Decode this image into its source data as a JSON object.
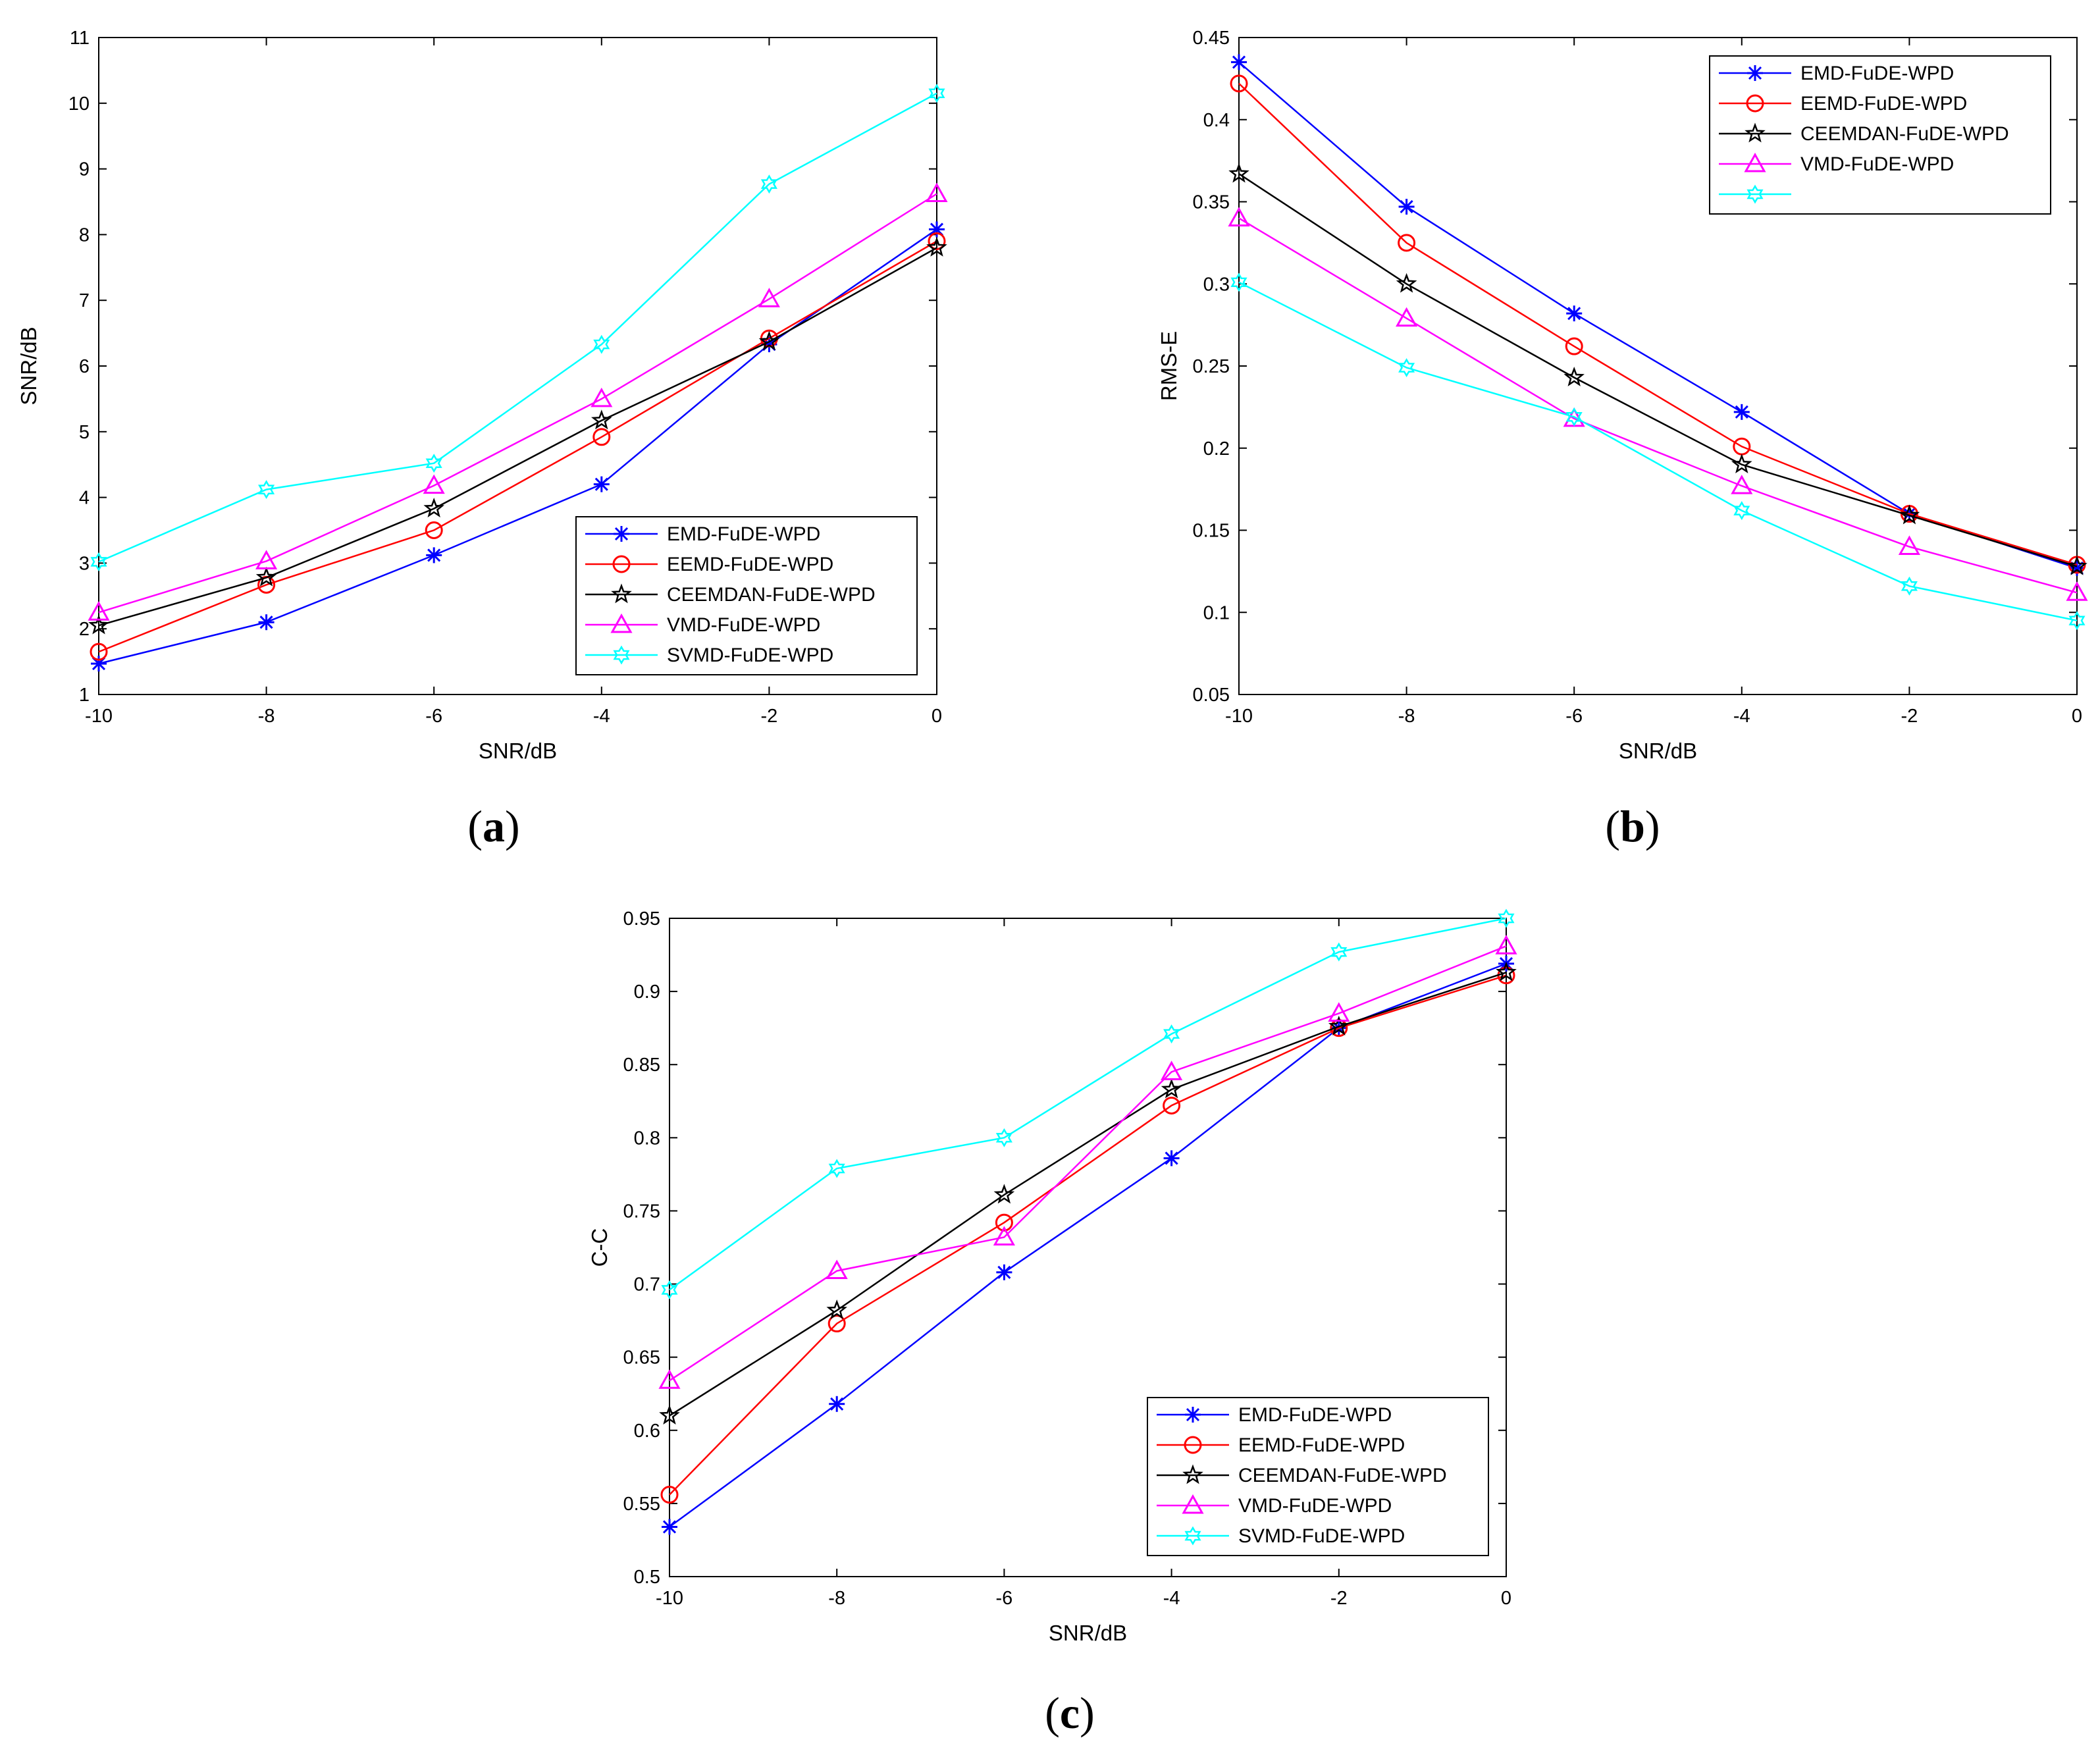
{
  "figure": {
    "panels": [
      "a",
      "b",
      "c"
    ]
  },
  "chart_data": [
    {
      "id": "a",
      "type": "line",
      "caption_letter": "a",
      "xlabel": "SNR/dB",
      "ylabel": "SNR/dB",
      "xlim": [
        -10,
        0
      ],
      "ylim": [
        1,
        11
      ],
      "xticks": [
        -10,
        -8,
        -6,
        -4,
        -2,
        0
      ],
      "xtick_labels": [
        "-10",
        "-8",
        "-6",
        "-4",
        "-2",
        "0"
      ],
      "yticks": [
        1,
        2,
        3,
        4,
        5,
        6,
        7,
        8,
        9,
        10,
        11
      ],
      "ytick_labels": [
        "1",
        "2",
        "3",
        "4",
        "5",
        "6",
        "7",
        "8",
        "9",
        "10",
        "11"
      ],
      "legend_position": "bottom-right",
      "x": [
        -10,
        -8,
        -6,
        -4,
        -2,
        0
      ],
      "series": [
        {
          "name": "EMD-FuDE-WPD",
          "color": "#0000ff",
          "marker": "asterisk",
          "values": [
            1.47,
            2.1,
            3.12,
            4.2,
            6.33,
            8.08
          ]
        },
        {
          "name": "EEMD-FuDE-WPD",
          "color": "#ff0000",
          "marker": "circle",
          "values": [
            1.65,
            2.67,
            3.5,
            4.92,
            6.42,
            7.9
          ]
        },
        {
          "name": "CEEMDAN-FuDE-WPD",
          "color": "#000000",
          "marker": "star",
          "values": [
            2.05,
            2.78,
            3.83,
            5.17,
            6.37,
            7.8
          ]
        },
        {
          "name": "VMD-FuDE-WPD",
          "color": "#ff00ff",
          "marker": "triangle",
          "values": [
            2.25,
            3.03,
            4.18,
            5.5,
            7.02,
            8.62
          ]
        },
        {
          "name": "SVMD-FuDE-WPD",
          "color": "#00ffff",
          "marker": "hexagram",
          "values": [
            3.02,
            4.12,
            4.52,
            6.33,
            8.77,
            10.15
          ]
        }
      ]
    },
    {
      "id": "b",
      "type": "line",
      "caption_letter": "b",
      "xlabel": "SNR/dB",
      "ylabel": "RMS-E",
      "xlim": [
        -10,
        0
      ],
      "ylim": [
        0.05,
        0.45
      ],
      "xticks": [
        -10,
        -8,
        -6,
        -4,
        -2,
        0
      ],
      "xtick_labels": [
        "-10",
        "-8",
        "-6",
        "-4",
        "-2",
        "0"
      ],
      "yticks": [
        0.05,
        0.1,
        0.15,
        0.2,
        0.25,
        0.3,
        0.35,
        0.4,
        0.45
      ],
      "ytick_labels": [
        "0.05",
        "0.1",
        "0.15",
        "0.2",
        "0.25",
        "0.3",
        "0.35",
        "0.4",
        "0.45"
      ],
      "legend_position": "top-right",
      "x": [
        -10,
        -8,
        -6,
        -4,
        -2,
        0
      ],
      "series": [
        {
          "name": "EMD-FuDE-WPD",
          "color": "#0000ff",
          "marker": "asterisk",
          "values": [
            0.435,
            0.347,
            0.282,
            0.222,
            0.16,
            0.127
          ]
        },
        {
          "name": "EEMD-FuDE-WPD",
          "color": "#ff0000",
          "marker": "circle",
          "values": [
            0.422,
            0.325,
            0.262,
            0.201,
            0.16,
            0.129
          ]
        },
        {
          "name": "CEEMDAN-FuDE-WPD",
          "color": "#000000",
          "marker": "star",
          "values": [
            0.367,
            0.3,
            0.243,
            0.19,
            0.159,
            0.128
          ]
        },
        {
          "name": "VMD-FuDE-WPD",
          "color": "#ff00ff",
          "marker": "triangle",
          "values": [
            0.34,
            0.279,
            0.218,
            0.177,
            0.14,
            0.112
          ]
        },
        {
          "name": "",
          "color": "#00ffff",
          "marker": "hexagram",
          "values": [
            0.301,
            0.249,
            0.219,
            0.162,
            0.116,
            0.095
          ]
        }
      ]
    },
    {
      "id": "c",
      "type": "line",
      "caption_letter": "c",
      "xlabel": "SNR/dB",
      "ylabel": "C-C",
      "xlim": [
        -10,
        0
      ],
      "ylim": [
        0.5,
        0.95
      ],
      "xticks": [
        -10,
        -8,
        -6,
        -4,
        -2,
        0
      ],
      "xtick_labels": [
        "-10",
        "-8",
        "-6",
        "-4",
        "-2",
        "0"
      ],
      "yticks": [
        0.5,
        0.55,
        0.6,
        0.65,
        0.7,
        0.75,
        0.8,
        0.85,
        0.9,
        0.95
      ],
      "ytick_labels": [
        "0.5",
        "0.55",
        "0.6",
        "0.65",
        "0.7",
        "0.75",
        "0.8",
        "0.85",
        "0.9",
        "0.95"
      ],
      "legend_position": "bottom-right",
      "x": [
        -10,
        -8,
        -6,
        -4,
        -2,
        0
      ],
      "series": [
        {
          "name": "EMD-FuDE-WPD",
          "color": "#0000ff",
          "marker": "asterisk",
          "values": [
            0.534,
            0.618,
            0.708,
            0.786,
            0.875,
            0.919
          ]
        },
        {
          "name": "EEMD-FuDE-WPD",
          "color": "#ff0000",
          "marker": "circle",
          "values": [
            0.556,
            0.673,
            0.742,
            0.822,
            0.875,
            0.911
          ]
        },
        {
          "name": "CEEMDAN-FuDE-WPD",
          "color": "#000000",
          "marker": "star",
          "values": [
            0.61,
            0.682,
            0.761,
            0.833,
            0.876,
            0.913
          ]
        },
        {
          "name": "VMD-FuDE-WPD",
          "color": "#ff00ff",
          "marker": "triangle",
          "values": [
            0.634,
            0.709,
            0.732,
            0.845,
            0.885,
            0.931
          ]
        },
        {
          "name": "SVMD-FuDE-WPD",
          "color": "#00ffff",
          "marker": "hexagram",
          "values": [
            0.696,
            0.779,
            0.8,
            0.871,
            0.927,
            0.95
          ]
        }
      ]
    }
  ]
}
